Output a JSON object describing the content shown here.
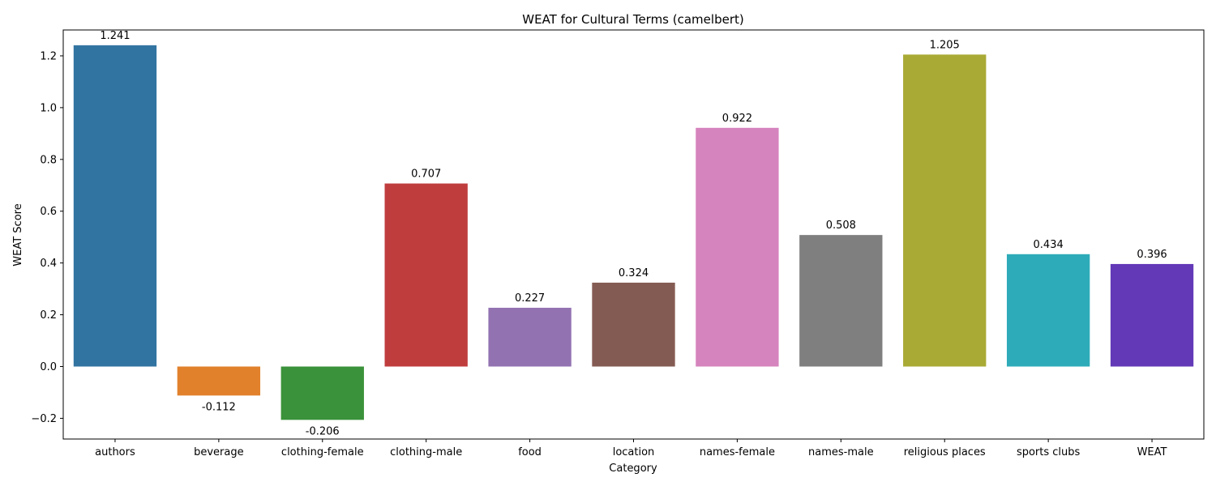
{
  "chart_data": {
    "type": "bar",
    "title": "WEAT for Cultural Terms (camelbert)",
    "xlabel": "Category",
    "ylabel": "WEAT Score",
    "ylim": [
      -0.28,
      1.3
    ],
    "yticks": [
      -0.2,
      0.0,
      0.2,
      0.4,
      0.6,
      0.8,
      1.0,
      1.2
    ],
    "ytick_labels": [
      "−0.2",
      "0.0",
      "0.2",
      "0.4",
      "0.6",
      "0.8",
      "1.0",
      "1.2"
    ],
    "grid": false,
    "legend": "none",
    "categories": [
      "authors",
      "beverage",
      "clothing-female",
      "clothing-male",
      "food",
      "location",
      "names-female",
      "names-male",
      "religious places",
      "sports clubs",
      "WEAT"
    ],
    "values": [
      1.241,
      -0.112,
      -0.206,
      0.707,
      0.227,
      0.324,
      0.922,
      0.508,
      1.205,
      0.434,
      0.396
    ],
    "value_labels": [
      "1.241",
      "-0.112",
      "-0.206",
      "0.707",
      "0.227",
      "0.324",
      "0.922",
      "0.508",
      "1.205",
      "0.434",
      "0.396"
    ],
    "colors": [
      "#3274a1",
      "#e1812c",
      "#3a923a",
      "#c03d3e",
      "#9372b2",
      "#845b53",
      "#d684bd",
      "#7f7f7f",
      "#a9aa35",
      "#2eabb8",
      "#6339b8"
    ]
  }
}
